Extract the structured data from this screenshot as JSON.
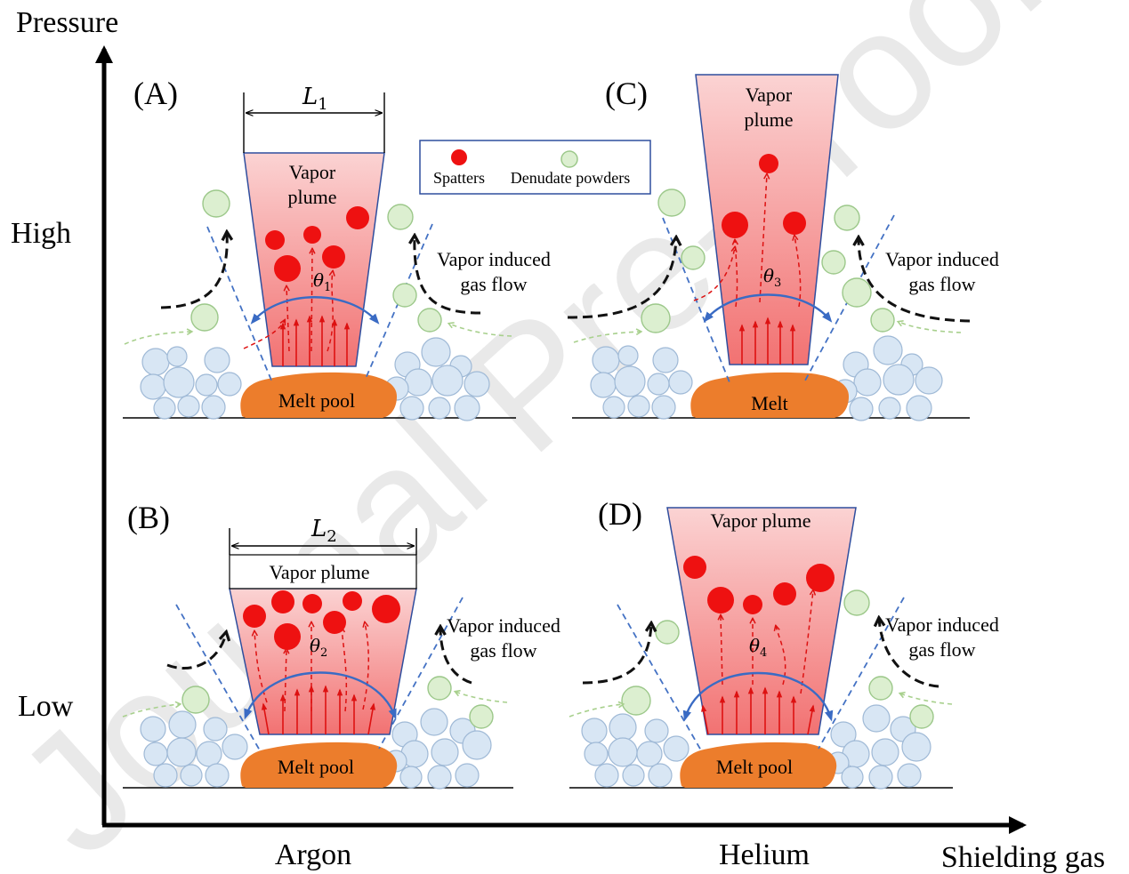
{
  "axes": {
    "y_title": "Pressure",
    "y_high": "High",
    "y_low": "Low",
    "x_title": "Shielding gas",
    "x_argon": "Argon",
    "x_helium": "Helium"
  },
  "watermark": "Journal Pre-proof",
  "legend": {
    "spatters": "Spatters",
    "denudate": "Denudate powders"
  },
  "panels": {
    "A": {
      "label": "(A)",
      "width_symbol": "L",
      "width_sub": "1",
      "plume_line1": "Vapor",
      "plume_line2": "plume",
      "angle_symbol": "θ",
      "angle_sub": "1",
      "flow_line1": "Vapor induced",
      "flow_line2": "gas flow",
      "pool": "Melt pool"
    },
    "B": {
      "label": "(B)",
      "width_symbol": "L",
      "width_sub": "2",
      "plume": "Vapor plume",
      "angle_symbol": "θ",
      "angle_sub": "2",
      "flow_line1": "Vapor induced",
      "flow_line2": "gas flow",
      "pool": "Melt pool"
    },
    "C": {
      "label": "(C)",
      "plume_line1": "Vapor",
      "plume_line2": "plume",
      "angle_symbol": "θ",
      "angle_sub": "3",
      "flow_line1": "Vapor induced",
      "flow_line2": "gas flow",
      "pool": "Melt"
    },
    "D": {
      "label": "(D)",
      "plume": "Vapor plume",
      "angle_symbol": "θ",
      "angle_sub": "4",
      "flow_line1": "Vapor induced",
      "flow_line2": "gas flow",
      "pool": "Melt pool"
    }
  },
  "colors": {
    "spatter": "#ee1111",
    "denudate_fill": "#dcefd0",
    "denudate_stroke": "#9cc88a",
    "powder_fill": "#d8e6f4",
    "powder_stroke": "#9fb9d6",
    "melt_pool": "#ec7d2c",
    "plume_top": "#f9c4c4",
    "plume_bottom": "#f37a7a",
    "plume_stroke": "#2f4e9e",
    "boundary_dash": "#4472c4",
    "angle_arc": "#3a6bc4",
    "vapor_arrow": "#dd1111",
    "gas_flow": "#111111",
    "side_flow": "#a8d08d"
  }
}
